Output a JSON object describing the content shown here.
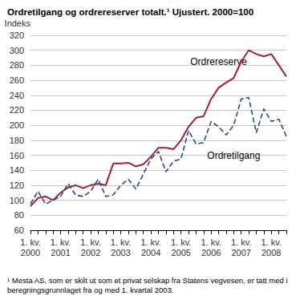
{
  "chart_data": {
    "type": "line",
    "title": "Ordretilgang og ordrereserver totalt.¹ Ujustert. 2000=100",
    "y_label": "Indeks",
    "footnote": "¹ Mesta AS, som er skilt ut som et privat selskap fra Statens vegvesen, er tatt med i beregningsgrunnlaget fra og med 1. kvartal 2003.",
    "categories": [
      "1. kv.\n2000",
      null,
      null,
      null,
      "1. kv.\n2001",
      null,
      null,
      null,
      "1. kv.\n2002",
      null,
      null,
      null,
      "1. kv.\n2003",
      null,
      null,
      null,
      "1. kv.\n2004",
      null,
      null,
      null,
      "1. kv.\n2005",
      null,
      null,
      null,
      "1. kv.\n2006",
      null,
      null,
      null,
      "1. kv.\n2007",
      null,
      null,
      null,
      "1. kv.\n2008",
      null,
      null
    ],
    "series": [
      {
        "name": "Ordrereserve",
        "color": "#a3202f",
        "line_style": "solid",
        "values": [
          92,
          103,
          105,
          100,
          110,
          117,
          120,
          116,
          120,
          122,
          120,
          149,
          149,
          150,
          145,
          148,
          158,
          170,
          170,
          168,
          180,
          198,
          210,
          212,
          235,
          250,
          257,
          263,
          285,
          300,
          295,
          292,
          295,
          280,
          265
        ]
      },
      {
        "name": "Ordretilgang",
        "color": "#1f4e8c",
        "line_style": "dashed",
        "values": [
          95,
          112,
          95,
          100,
          105,
          122,
          107,
          105,
          112,
          128,
          105,
          107,
          120,
          128,
          115,
          135,
          155,
          165,
          138,
          152,
          155,
          193,
          175,
          177,
          205,
          198,
          187,
          200,
          235,
          237,
          190,
          222,
          205,
          208,
          185
        ]
      }
    ],
    "ylim": [
      60,
      320
    ],
    "yticks": [
      60,
      80,
      100,
      120,
      140,
      160,
      180,
      200,
      220,
      240,
      260,
      280,
      300,
      320
    ],
    "grid": true
  }
}
